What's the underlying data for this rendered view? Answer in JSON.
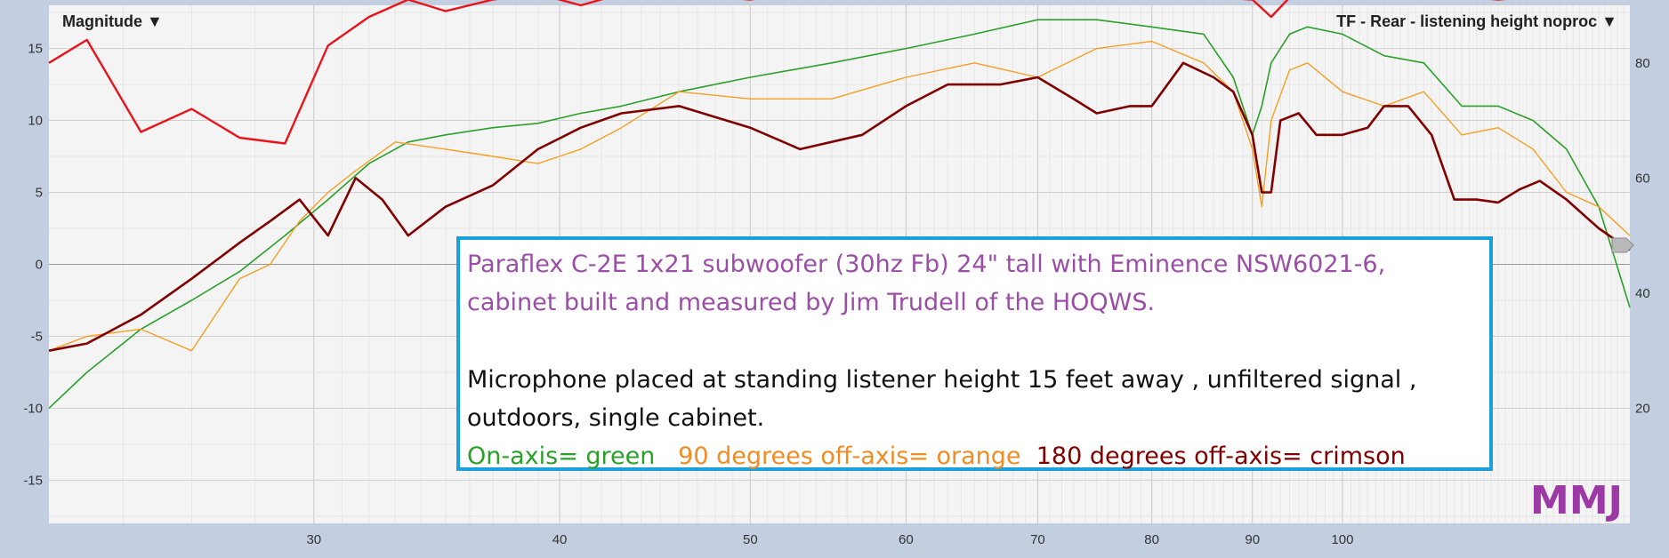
{
  "chart_data": {
    "type": "line",
    "title_left": "Magnitude ▼",
    "title_right": "TF - Rear - listening height noproc ▼",
    "xscale": "log",
    "xlim": [
      22,
      140
    ],
    "ylim_left": [
      -18,
      18
    ],
    "ylim_right": [
      0,
      90
    ],
    "x_ticks": [
      30,
      40,
      50,
      60,
      70,
      80,
      90,
      100
    ],
    "y_ticks_left": [
      -15,
      -10,
      -5,
      0,
      5,
      10,
      15
    ],
    "y_ticks_right": [
      20,
      40,
      60,
      80
    ],
    "grid": true,
    "series": [
      {
        "name": "",
        "axis": "right",
        "color": "#e8141c",
        "x": [
          22,
          23,
          24.5,
          26,
          27.5,
          29,
          30.5,
          32,
          33.5,
          35,
          37,
          39,
          41,
          43,
          46,
          50,
          55,
          60,
          70,
          80,
          90,
          92,
          95,
          100,
          110,
          120,
          130,
          140
        ],
        "y": [
          80,
          84,
          68,
          72,
          67,
          66,
          83,
          88,
          91,
          89,
          91,
          92,
          90,
          92,
          92,
          91,
          93,
          92,
          93,
          92,
          91,
          88,
          93,
          92,
          92,
          91,
          92,
          92
        ]
      },
      {
        "name": "",
        "axis": "left",
        "color": "#2aa02a",
        "x": [
          22,
          23,
          24.5,
          26,
          27.5,
          29,
          30.5,
          32,
          33.5,
          35,
          37,
          39,
          41,
          43,
          46,
          50,
          55,
          60,
          65,
          70,
          75,
          80,
          85,
          88,
          90,
          91,
          92,
          94,
          96,
          100,
          105,
          110,
          115,
          120,
          125,
          130,
          135,
          140
        ],
        "y": [
          -10,
          -7.5,
          -4.5,
          -2.5,
          -0.5,
          2,
          4.5,
          7,
          8.5,
          9,
          9.5,
          9.8,
          10.5,
          11,
          12,
          13,
          14,
          15,
          16,
          17,
          17,
          16.5,
          16,
          13,
          9,
          11,
          14,
          16,
          16.5,
          16,
          14.5,
          14,
          11,
          11,
          10,
          8,
          4,
          -3
        ]
      },
      {
        "name": "",
        "axis": "left",
        "color": "#f5a024",
        "x": [
          22,
          23,
          24.5,
          26,
          27.5,
          28.5,
          29.5,
          30.5,
          31.5,
          33,
          35,
          37,
          39,
          41,
          43,
          46,
          50,
          55,
          60,
          65,
          70,
          75,
          80,
          85,
          88,
          90,
          91,
          92,
          94,
          96,
          100,
          105,
          110,
          115,
          120,
          125,
          130,
          135,
          140
        ],
        "y": [
          -6,
          -5,
          -4.5,
          -6,
          -1,
          0,
          3,
          5,
          6.5,
          8.5,
          8,
          7.5,
          7,
          8,
          9.5,
          12,
          11.5,
          11.5,
          13,
          14,
          13,
          15,
          15.5,
          14,
          12,
          8,
          4,
          10,
          13.5,
          14,
          12,
          11,
          12,
          9,
          9.5,
          8,
          5,
          4,
          2
        ]
      },
      {
        "name": "",
        "axis": "left",
        "color": "#800000",
        "x": [
          22,
          23,
          24.5,
          26,
          27.5,
          28.5,
          29.5,
          30.5,
          31.5,
          32.5,
          33.5,
          35,
          37,
          39,
          41,
          43,
          46,
          50,
          53,
          57,
          60,
          63,
          67,
          70,
          73,
          75,
          78,
          80,
          83,
          86,
          88,
          90,
          91,
          92,
          93,
          95,
          97,
          100,
          103,
          105,
          108,
          111,
          114,
          117,
          120,
          123,
          126,
          130,
          135,
          140
        ],
        "y": [
          -6,
          -5.5,
          -3.5,
          -1,
          1.5,
          3,
          4.5,
          2,
          6,
          4.5,
          2,
          4,
          5.5,
          8,
          9.5,
          10.5,
          11,
          9.5,
          8,
          9,
          11,
          12.5,
          12.5,
          13,
          11.5,
          10.5,
          11,
          11,
          14,
          13,
          12,
          9,
          5,
          5,
          10,
          10.5,
          9,
          9,
          9.5,
          11,
          11,
          9,
          4.5,
          4.5,
          4.3,
          5.2,
          5.8,
          4.5,
          2.5,
          1
        ]
      }
    ],
    "annotation": {
      "line1": "Paraflex C-2E 1x21 subwoofer (30hz Fb) 24\" tall with Eminence NSW6021-6,",
      "line2a": "cabinet built and measured by ",
      "line2b": "Jim Trudell of the HOQWS.",
      "line3": "Microphone placed at standing listener height 15 feet away , unfiltered signal ,",
      "line4": "outdoors, single cabinet.",
      "legend_green": "On-axis= green",
      "legend_orange": "90 degrees off-axis= orange",
      "legend_crimson": "180 degrees off-axis= crimson"
    },
    "watermark": "MMJ"
  }
}
